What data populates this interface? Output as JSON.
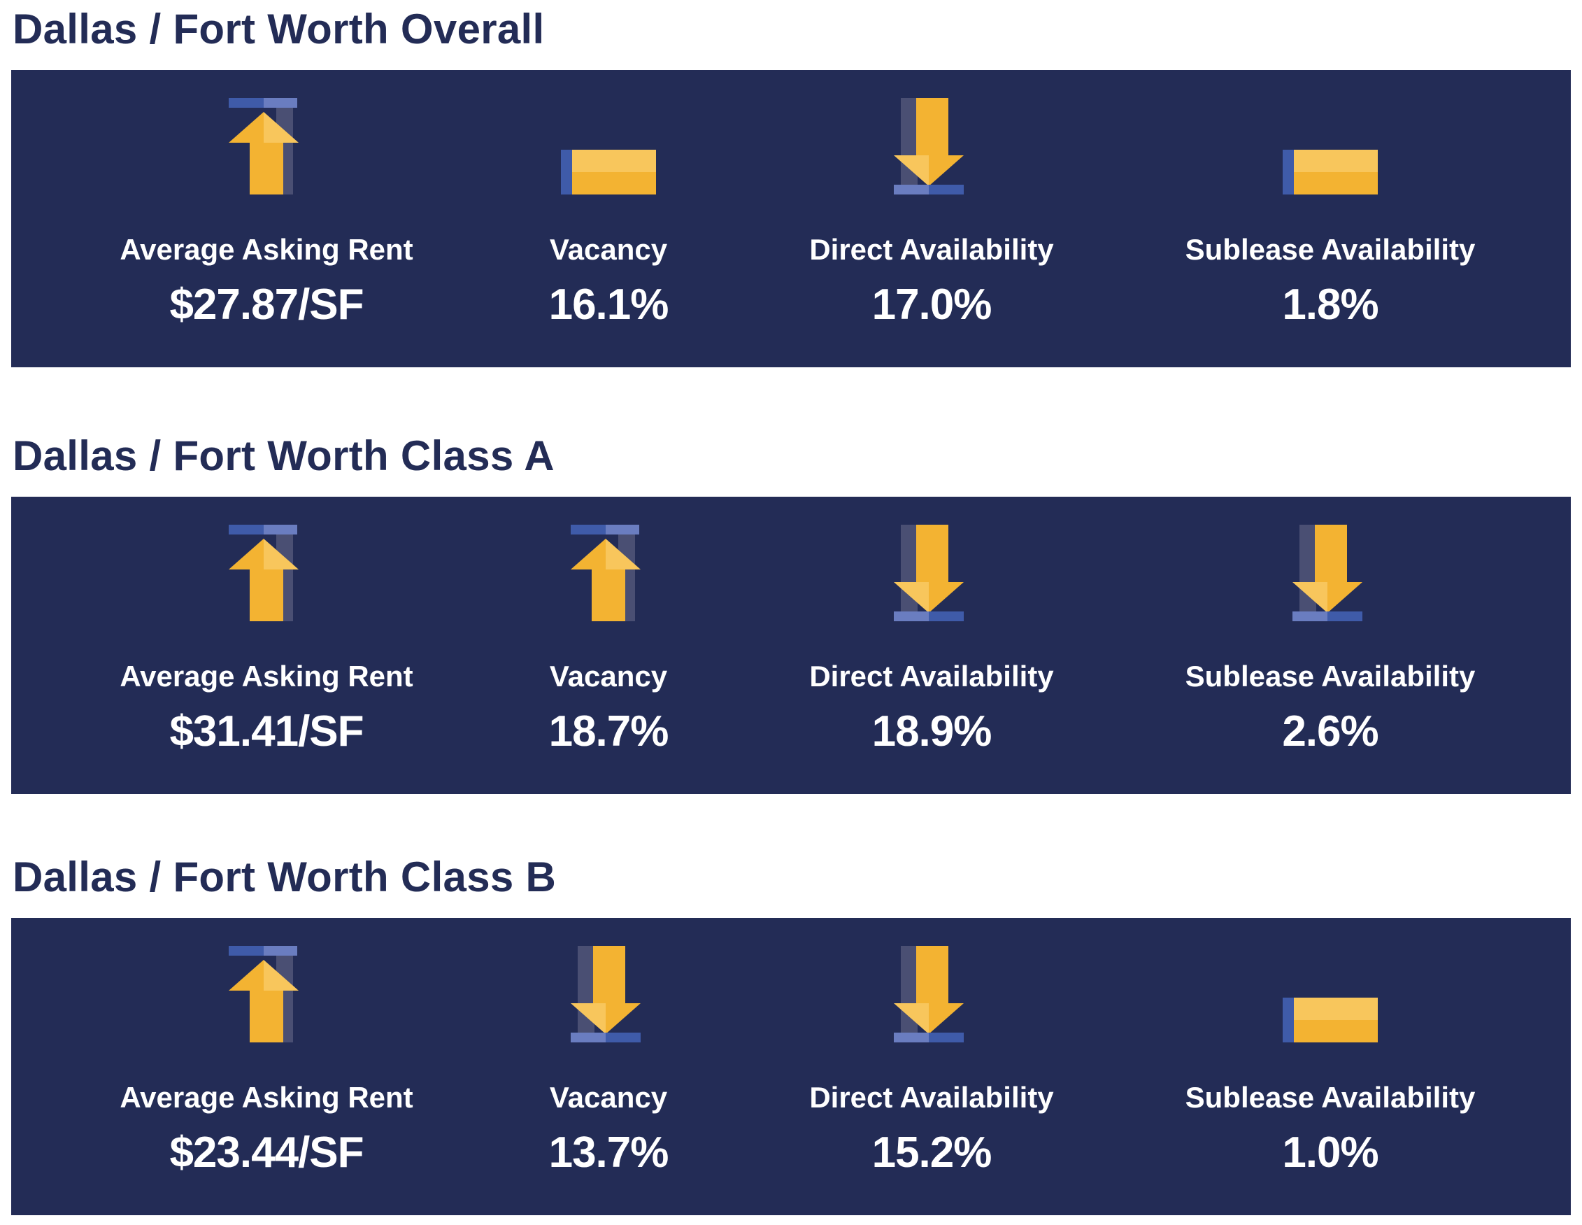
{
  "colors": {
    "navy": "#232c56",
    "gold": "#f3b332",
    "gold_light": "#f8c65c",
    "blue": "#3f5ba9",
    "blue_light": "#6a7dc0",
    "panel_shadow": "#4a4f73"
  },
  "sections": [
    {
      "title": "Dallas / Fort Worth Overall",
      "metrics": [
        {
          "label": "Average Asking Rent",
          "value": "$27.87/SF",
          "trend": "up",
          "icon": "arrow-up-icon"
        },
        {
          "label": "Vacancy",
          "value": "16.1%",
          "trend": "flat",
          "icon": "flat-bar-icon"
        },
        {
          "label": "Direct Availability",
          "value": "17.0%",
          "trend": "down",
          "icon": "arrow-down-icon"
        },
        {
          "label": "Sublease Availability",
          "value": "1.8%",
          "trend": "flat",
          "icon": "flat-bar-icon"
        }
      ]
    },
    {
      "title": "Dallas / Fort Worth Class A",
      "metrics": [
        {
          "label": "Average Asking Rent",
          "value": "$31.41/SF",
          "trend": "up",
          "icon": "arrow-up-icon"
        },
        {
          "label": "Vacancy",
          "value": "18.7%",
          "trend": "up",
          "icon": "arrow-up-icon"
        },
        {
          "label": "Direct Availability",
          "value": "18.9%",
          "trend": "down",
          "icon": "arrow-down-icon"
        },
        {
          "label": "Sublease Availability",
          "value": "2.6%",
          "trend": "down",
          "icon": "arrow-down-icon"
        }
      ]
    },
    {
      "title": "Dallas / Fort Worth Class B",
      "metrics": [
        {
          "label": "Average Asking Rent",
          "value": "$23.44/SF",
          "trend": "up",
          "icon": "arrow-up-icon"
        },
        {
          "label": "Vacancy",
          "value": "13.7%",
          "trend": "down",
          "icon": "arrow-down-icon"
        },
        {
          "label": "Direct Availability",
          "value": "15.2%",
          "trend": "down",
          "icon": "arrow-down-icon"
        },
        {
          "label": "Sublease Availability",
          "value": "1.0%",
          "trend": "flat",
          "icon": "flat-bar-icon"
        }
      ]
    }
  ]
}
